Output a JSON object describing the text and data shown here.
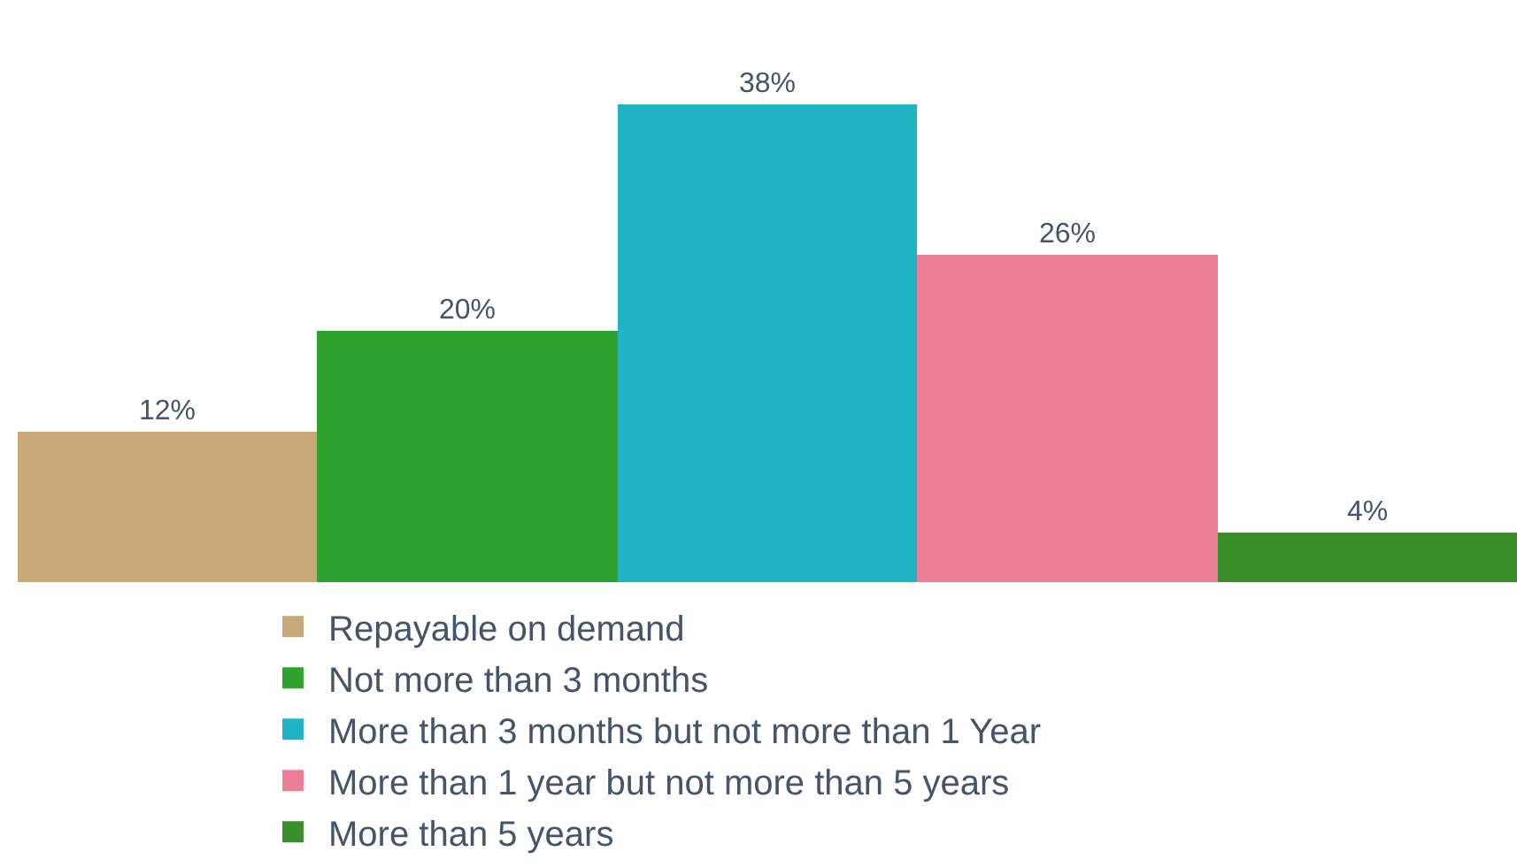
{
  "chart_data": {
    "type": "bar",
    "categories": [
      null,
      null,
      null,
      null,
      null
    ],
    "series": [
      {
        "name": "Repayable on demand",
        "color": "#c9a878",
        "values": [
          12,
          null,
          null,
          null,
          null
        ],
        "value_labels": [
          "12%",
          null,
          null,
          null,
          null
        ]
      },
      {
        "name": "Not more than 3 months",
        "color": "#2fa12f",
        "values": [
          null,
          20,
          null,
          null,
          null
        ],
        "value_labels": [
          null,
          "20%",
          null,
          null,
          null
        ]
      },
      {
        "name": "More than 3 months but not more than 1 Year",
        "color": "#1fb3c4",
        "values": [
          null,
          null,
          38,
          null,
          null
        ],
        "value_labels": [
          null,
          null,
          "38%",
          null,
          null
        ]
      },
      {
        "name": "More than 1 year but not more than 5 years",
        "color": "#ec7d97",
        "values": [
          null,
          null,
          null,
          26,
          null
        ],
        "value_labels": [
          null,
          null,
          null,
          "26%",
          null
        ]
      },
      {
        "name": "More than 5 years",
        "color": "#3a8f2a",
        "values": [
          null,
          null,
          null,
          null,
          4
        ],
        "value_labels": [
          null,
          null,
          null,
          null,
          "4%"
        ]
      }
    ],
    "stacked": true,
    "legend": "bottom"
  }
}
